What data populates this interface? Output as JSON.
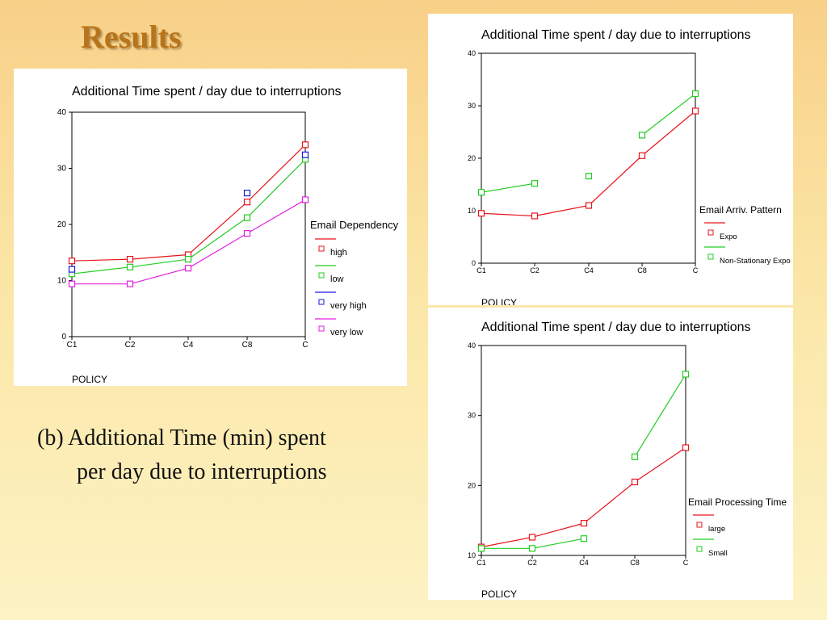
{
  "slide": {
    "title": "Results",
    "caption_line1": "(b) Additional Time (min) spent",
    "caption_line2": "per day due to interruptions"
  },
  "colors": {
    "high": "#e8141c",
    "low": "#22cc22",
    "very_high": "#1a1ae0",
    "very_low": "#e020e0",
    "background_top": "#f8d088",
    "background_bottom": "#fdf3c4",
    "title": "#b8741a"
  },
  "chart_data": [
    {
      "id": "email-dependency",
      "type": "line",
      "title": "Additional Time spent / day due to interruptions",
      "xlabel": "POLICY",
      "ylabel": "",
      "categories": [
        "C1",
        "C2",
        "C4",
        "C8",
        "C"
      ],
      "yticks": [
        0,
        10,
        20,
        30,
        40
      ],
      "ylim": [
        0,
        40
      ],
      "grid": false,
      "legend_title": "Email Dependency",
      "legend_position": "right",
      "series": [
        {
          "name": "high",
          "color": "#e8141c",
          "values": [
            13.5,
            13.8,
            14.6,
            24.0,
            34.2
          ],
          "line_breaks": []
        },
        {
          "name": "low",
          "color": "#22cc22",
          "values": [
            11.2,
            12.4,
            13.8,
            21.2,
            31.6
          ],
          "line_breaks": []
        },
        {
          "name": "very high",
          "color": "#1a1ae0",
          "values": [
            12.0,
            null,
            null,
            25.6,
            32.4
          ],
          "line_breaks": [
            0,
            3
          ]
        },
        {
          "name": "very low",
          "color": "#e020e0",
          "values": [
            9.4,
            9.4,
            12.2,
            18.4,
            24.4
          ],
          "line_breaks": []
        }
      ]
    },
    {
      "id": "email-arrival-pattern",
      "type": "line",
      "title": "Additional Time spent / day due to interruptions",
      "xlabel": "POLICY",
      "ylabel": "",
      "categories": [
        "C1",
        "C2",
        "C4",
        "C8",
        "C"
      ],
      "yticks": [
        0,
        10,
        20,
        30,
        40
      ],
      "ylim": [
        0,
        40
      ],
      "grid": false,
      "legend_title": "Email Arriv. Pattern",
      "legend_position": "right",
      "series": [
        {
          "name": "Expo",
          "color": "#e8141c",
          "values": [
            9.5,
            9.0,
            11.0,
            20.5,
            29.0
          ],
          "line_breaks": []
        },
        {
          "name": "Non-Stationary Expo",
          "color": "#22cc22",
          "values": [
            13.5,
            15.2,
            16.6,
            24.4,
            32.3
          ],
          "line_breaks": [
            1,
            2
          ]
        }
      ]
    },
    {
      "id": "email-processing-time",
      "type": "line",
      "title": "Additional Time spent / day due to interruptions",
      "xlabel": "POLICY",
      "ylabel": "",
      "categories": [
        "C1",
        "C2",
        "C4",
        "C8",
        "C"
      ],
      "yticks": [
        10,
        20,
        30,
        40
      ],
      "ylim": [
        10,
        40
      ],
      "grid": false,
      "legend_title": "Email Processing Time",
      "legend_position": "right",
      "series": [
        {
          "name": "large",
          "color": "#e8141c",
          "values": [
            11.2,
            12.6,
            14.6,
            20.5,
            25.4
          ],
          "line_breaks": []
        },
        {
          "name": "Small",
          "color": "#22cc22",
          "values": [
            11.0,
            11.0,
            12.4,
            24.1,
            35.9
          ],
          "line_breaks": [
            2
          ]
        }
      ]
    }
  ]
}
